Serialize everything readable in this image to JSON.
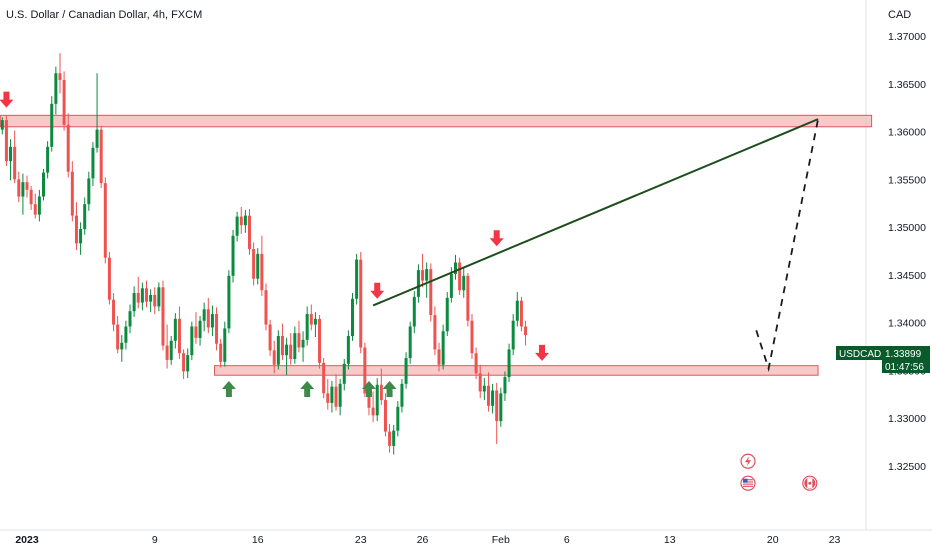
{
  "chart_data": {
    "type": "candlestick",
    "title": "U.S. Dollar / Canadian Dollar, 4h, FXCM",
    "currency_label": "CAD",
    "symbol": "USDCAD",
    "last_price": "1.33899",
    "countdown": "01:47:56",
    "ylim": [
      1.3222,
      1.3718
    ],
    "y_ticks": [
      "1.37000",
      "1.36500",
      "1.36000",
      "1.35500",
      "1.35000",
      "1.34500",
      "1.34000",
      "1.33500",
      "1.33000",
      "1.32500"
    ],
    "x_ticks": [
      {
        "label": "2023",
        "bar": 6,
        "bold": true
      },
      {
        "label": "9",
        "bar": 37
      },
      {
        "label": "16",
        "bar": 62
      },
      {
        "label": "23",
        "bar": 87
      },
      {
        "label": "26",
        "bar": 102
      },
      {
        "label": "Feb",
        "bar": 121
      },
      {
        "label": "6",
        "bar": 137
      },
      {
        "label": "13",
        "bar": 162
      },
      {
        "label": "20",
        "bar": 187
      },
      {
        "label": "23",
        "bar": 202
      }
    ],
    "colors": {
      "up": "#0b8a40",
      "down": "#ef5350",
      "zone_fill": "#f6b7b7",
      "zone_stroke": "#e0575b",
      "trendline": "#1d4d1d",
      "arrow_down": "#f23645",
      "arrow_up": "#3e8a4a",
      "badge": "#0a5a2c"
    },
    "candles": [
      [
        1.3602,
        1.3615,
        1.3597,
        1.3612
      ],
      [
        1.3612,
        1.3617,
        1.3564,
        1.3569
      ],
      [
        1.3569,
        1.3592,
        1.3549,
        1.3584
      ],
      [
        1.3584,
        1.3601,
        1.3546,
        1.355
      ],
      [
        1.355,
        1.3558,
        1.3526,
        1.3532
      ],
      [
        1.3532,
        1.3556,
        1.3513,
        1.3547
      ],
      [
        1.3547,
        1.3554,
        1.3531,
        1.3539
      ],
      [
        1.3539,
        1.3543,
        1.3518,
        1.3524
      ],
      [
        1.3524,
        1.3535,
        1.3509,
        1.3513
      ],
      [
        1.3513,
        1.3539,
        1.3506,
        1.3532
      ],
      [
        1.3532,
        1.3561,
        1.3528,
        1.3557
      ],
      [
        1.3557,
        1.359,
        1.3551,
        1.3584
      ],
      [
        1.3584,
        1.3637,
        1.3579,
        1.3629
      ],
      [
        1.3629,
        1.3668,
        1.3618,
        1.3661
      ],
      [
        1.3661,
        1.3682,
        1.364,
        1.3654
      ],
      [
        1.3654,
        1.3663,
        1.3601,
        1.3607
      ],
      [
        1.3607,
        1.3619,
        1.3552,
        1.3558
      ],
      [
        1.3558,
        1.3569,
        1.3506,
        1.3512
      ],
      [
        1.3512,
        1.3526,
        1.3476,
        1.3483
      ],
      [
        1.3483,
        1.3505,
        1.3471,
        1.3498
      ],
      [
        1.3498,
        1.3531,
        1.3492,
        1.3524
      ],
      [
        1.3524,
        1.3558,
        1.3517,
        1.3551
      ],
      [
        1.3551,
        1.3589,
        1.3543,
        1.3583
      ],
      [
        1.3583,
        1.3661,
        1.3578,
        1.3602
      ],
      [
        1.3602,
        1.3606,
        1.3541,
        1.3546
      ],
      [
        1.3546,
        1.3552,
        1.3462,
        1.3468
      ],
      [
        1.3468,
        1.3474,
        1.3419,
        1.3424
      ],
      [
        1.3424,
        1.3431,
        1.3391,
        1.3398
      ],
      [
        1.3398,
        1.3407,
        1.3368,
        1.3372
      ],
      [
        1.3372,
        1.3387,
        1.3359,
        1.3379
      ],
      [
        1.3379,
        1.3402,
        1.3372,
        1.3396
      ],
      [
        1.3396,
        1.3419,
        1.3389,
        1.3412
      ],
      [
        1.3412,
        1.3438,
        1.3406,
        1.3431
      ],
      [
        1.3431,
        1.3448,
        1.3415,
        1.3421
      ],
      [
        1.3421,
        1.3442,
        1.3413,
        1.3436
      ],
      [
        1.3436,
        1.3444,
        1.3416,
        1.3422
      ],
      [
        1.3422,
        1.3435,
        1.3411,
        1.3429
      ],
      [
        1.3429,
        1.3437,
        1.3409,
        1.3417
      ],
      [
        1.3417,
        1.3442,
        1.3412,
        1.3437
      ],
      [
        1.3437,
        1.3444,
        1.3371,
        1.3376
      ],
      [
        1.3376,
        1.3398,
        1.3352,
        1.3361
      ],
      [
        1.3361,
        1.3386,
        1.3356,
        1.3381
      ],
      [
        1.3381,
        1.341,
        1.3373,
        1.3404
      ],
      [
        1.3404,
        1.3417,
        1.3362,
        1.3368
      ],
      [
        1.3368,
        1.3372,
        1.3341,
        1.3349
      ],
      [
        1.3349,
        1.3373,
        1.3342,
        1.3366
      ],
      [
        1.3366,
        1.3401,
        1.3361,
        1.3396
      ],
      [
        1.3396,
        1.3411,
        1.3378,
        1.3384
      ],
      [
        1.3384,
        1.3407,
        1.3376,
        1.3402
      ],
      [
        1.3402,
        1.3421,
        1.3391,
        1.3414
      ],
      [
        1.3414,
        1.3426,
        1.3389,
        1.3395
      ],
      [
        1.3395,
        1.3418,
        1.3386,
        1.3409
      ],
      [
        1.3409,
        1.3416,
        1.3371,
        1.3378
      ],
      [
        1.3378,
        1.3383,
        1.3353,
        1.3359
      ],
      [
        1.3359,
        1.3401,
        1.3354,
        1.3394
      ],
      [
        1.3394,
        1.3455,
        1.3389,
        1.3449
      ],
      [
        1.3449,
        1.3497,
        1.3442,
        1.3491
      ],
      [
        1.3491,
        1.3516,
        1.3485,
        1.3511
      ],
      [
        1.3511,
        1.3521,
        1.3493,
        1.3502
      ],
      [
        1.3502,
        1.3518,
        1.3494,
        1.3512
      ],
      [
        1.3512,
        1.3519,
        1.3471,
        1.3477
      ],
      [
        1.3477,
        1.3484,
        1.3439,
        1.3446
      ],
      [
        1.3446,
        1.3478,
        1.344,
        1.3472
      ],
      [
        1.3472,
        1.3491,
        1.3428,
        1.3434
      ],
      [
        1.3434,
        1.3441,
        1.3392,
        1.3398
      ],
      [
        1.3398,
        1.3403,
        1.3365,
        1.3371
      ],
      [
        1.3371,
        1.3381,
        1.3347,
        1.3356
      ],
      [
        1.3356,
        1.3392,
        1.3351,
        1.3386
      ],
      [
        1.3386,
        1.3399,
        1.3361,
        1.3366
      ],
      [
        1.3366,
        1.3384,
        1.3345,
        1.3377
      ],
      [
        1.3377,
        1.3389,
        1.3356,
        1.3362
      ],
      [
        1.3362,
        1.3396,
        1.3357,
        1.3389
      ],
      [
        1.3389,
        1.3402,
        1.3369,
        1.3374
      ],
      [
        1.3374,
        1.3391,
        1.3359,
        1.3382
      ],
      [
        1.3382,
        1.3417,
        1.3376,
        1.3409
      ],
      [
        1.3409,
        1.3419,
        1.3392,
        1.3398
      ],
      [
        1.3398,
        1.3411,
        1.3385,
        1.3404
      ],
      [
        1.3404,
        1.3408,
        1.3352,
        1.3358
      ],
      [
        1.3358,
        1.3363,
        1.3321,
        1.3326
      ],
      [
        1.3326,
        1.3341,
        1.3309,
        1.3316
      ],
      [
        1.3316,
        1.3339,
        1.3306,
        1.3333
      ],
      [
        1.3333,
        1.3346,
        1.3308,
        1.3312
      ],
      [
        1.3312,
        1.3341,
        1.3303,
        1.3336
      ],
      [
        1.3336,
        1.3362,
        1.3329,
        1.3357
      ],
      [
        1.3357,
        1.3392,
        1.3351,
        1.3386
      ],
      [
        1.3386,
        1.3431,
        1.3381,
        1.3425
      ],
      [
        1.3425,
        1.3472,
        1.3419,
        1.3466
      ],
      [
        1.3466,
        1.3474,
        1.3368,
        1.3374
      ],
      [
        1.3374,
        1.3379,
        1.3322,
        1.3326
      ],
      [
        1.3326,
        1.3337,
        1.3303,
        1.3311
      ],
      [
        1.3311,
        1.3328,
        1.3296,
        1.3303
      ],
      [
        1.3303,
        1.3342,
        1.3297,
        1.3335
      ],
      [
        1.3335,
        1.3352,
        1.3314,
        1.3319
      ],
      [
        1.3319,
        1.3326,
        1.3281,
        1.3286
      ],
      [
        1.3286,
        1.3294,
        1.3264,
        1.3271
      ],
      [
        1.3271,
        1.3293,
        1.3262,
        1.3287
      ],
      [
        1.3287,
        1.3318,
        1.3281,
        1.3312
      ],
      [
        1.3312,
        1.3341,
        1.3306,
        1.3336
      ],
      [
        1.3336,
        1.3369,
        1.3331,
        1.3363
      ],
      [
        1.3363,
        1.3401,
        1.3357,
        1.3396
      ],
      [
        1.3396,
        1.3433,
        1.3389,
        1.3427
      ],
      [
        1.3427,
        1.3461,
        1.3421,
        1.3455
      ],
      [
        1.3455,
        1.3472,
        1.3437,
        1.3444
      ],
      [
        1.3444,
        1.3463,
        1.3426,
        1.3456
      ],
      [
        1.3456,
        1.3462,
        1.3401,
        1.3408
      ],
      [
        1.3408,
        1.3417,
        1.3366,
        1.3372
      ],
      [
        1.3372,
        1.3379,
        1.3349,
        1.3356
      ],
      [
        1.3356,
        1.3398,
        1.3351,
        1.3391
      ],
      [
        1.3391,
        1.3432,
        1.3386,
        1.3426
      ],
      [
        1.3426,
        1.3458,
        1.3421,
        1.3451
      ],
      [
        1.3451,
        1.3471,
        1.3445,
        1.3463
      ],
      [
        1.3463,
        1.3468,
        1.3429,
        1.3434
      ],
      [
        1.3434,
        1.3457,
        1.3426,
        1.3449
      ],
      [
        1.3449,
        1.3452,
        1.3396,
        1.3402
      ],
      [
        1.3402,
        1.3409,
        1.3362,
        1.3368
      ],
      [
        1.3368,
        1.3374,
        1.3341,
        1.3347
      ],
      [
        1.3347,
        1.3356,
        1.3321,
        1.3328
      ],
      [
        1.3328,
        1.3342,
        1.3319,
        1.3334
      ],
      [
        1.3334,
        1.3348,
        1.3307,
        1.3313
      ],
      [
        1.3313,
        1.3336,
        1.3305,
        1.3329
      ],
      [
        1.3329,
        1.3337,
        1.3273,
        1.3297
      ],
      [
        1.3297,
        1.3332,
        1.3291,
        1.3326
      ],
      [
        1.3326,
        1.3349,
        1.3318,
        1.3343
      ],
      [
        1.3343,
        1.3378,
        1.3338,
        1.3372
      ],
      [
        1.3372,
        1.3409,
        1.3366,
        1.3402
      ],
      [
        1.3402,
        1.3432,
        1.3396,
        1.3423
      ],
      [
        1.3423,
        1.3427,
        1.3391,
        1.3396
      ],
      [
        1.3396,
        1.3402,
        1.3376,
        1.3387
      ]
    ],
    "support_zone": {
      "y1": 1.3345,
      "y2": 1.3355,
      "x_start_bar": 52,
      "x_end_bar": 198
    },
    "resistance_zone": {
      "y1": 1.3605,
      "y2": 1.3617,
      "x_start_bar": 0,
      "x_end_bar": 211
    },
    "trendline": {
      "x1_bar": 90,
      "y1": 1.3418,
      "x2_bar": 198,
      "y2": 1.3613
    },
    "projection": [
      {
        "bar": 183,
        "price": 1.3392
      },
      {
        "bar": 186,
        "price": 1.3352
      },
      {
        "bar": 198,
        "price": 1.3613
      }
    ],
    "down_arrows": [
      {
        "bar": 1,
        "price": 1.3625
      },
      {
        "bar": 91,
        "price": 1.3425
      },
      {
        "bar": 120,
        "price": 1.348
      },
      {
        "bar": 131,
        "price": 1.336
      }
    ],
    "up_arrows": [
      {
        "bar": 55,
        "price": 1.3339
      },
      {
        "bar": 74,
        "price": 1.3339
      },
      {
        "bar": 89,
        "price": 1.3339
      },
      {
        "bar": 94,
        "price": 1.3339
      }
    ],
    "event_icons": [
      {
        "bar": 181,
        "price": 1.3255,
        "icon": "lightning-icon"
      },
      {
        "bar": 181,
        "price": 1.3232,
        "icon": "us-flag-icon"
      },
      {
        "bar": 196,
        "price": 1.3232,
        "icon": "canada-flag-icon"
      }
    ]
  }
}
